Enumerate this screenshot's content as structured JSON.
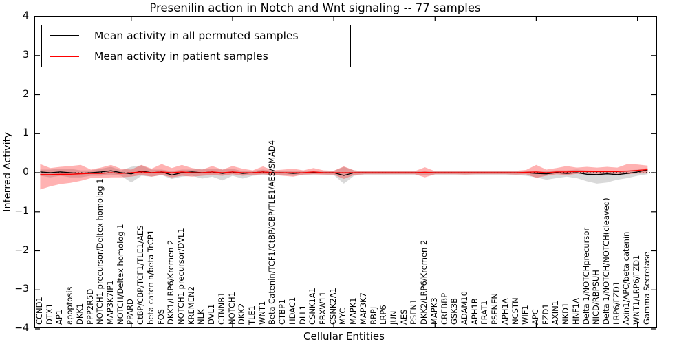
{
  "title": "Presenilin action in Notch and Wnt signaling -- 77 samples",
  "axes": {
    "ylabel": "Inferred Activity",
    "xlabel": "Cellular Entities"
  },
  "legend": {
    "items": [
      {
        "label": "Mean activity in all permuted samples",
        "color": "#000000"
      },
      {
        "label": "Mean activity in patient samples",
        "color": "#ff0000"
      }
    ]
  },
  "chart_data": {
    "type": "line",
    "title": "Presenilin action in Notch and Wnt signaling -- 77 samples",
    "xlabel": "Cellular Entities",
    "ylabel": "Inferred Activity",
    "ylim": [
      -4,
      4
    ],
    "yticks": [
      "4",
      "3",
      "2",
      "1",
      "0",
      "−1",
      "−2",
      "−3",
      "−4"
    ],
    "grid": false,
    "legend_position": "upper left",
    "zero_line": true,
    "categories": [
      "CCND1",
      "DTX1",
      "AP1",
      "apoptosis",
      "DKK1",
      "PPP2R5D",
      "NOTCH1 precursor/Deltex homolog 1",
      "MAP3K7IP1",
      "NOTCH/Deltex homolog 1",
      "PPARD",
      "CtBP/CBP/TCF1/TLE1/AES",
      "beta catenin/beta TrCP1",
      "FOS",
      "DKK1/LRP6/Kremen 2",
      "NOTCH1 precursor/DVL1",
      "KREMEN2",
      "NLK",
      "DVL1",
      "CTNNB1",
      "NOTCH1",
      "DKK2",
      "TLE1",
      "WNT1",
      "Beta Catenin/TCF1/CtBP/CBP/TLE1/AES/SMAD4",
      "CTBP1",
      "HDAC1",
      "DLL1",
      "CSNK1A1",
      "FBXW11",
      "CSNK2A1",
      "MYC",
      "MAPK1",
      "MAP3K7",
      "RBPJ",
      "LRP6",
      "JUN",
      "AES",
      "PSEN1",
      "DKK2/LRP6/Kremen 2",
      "MAPK3",
      "CREBBP",
      "GSK3B",
      "ADAM10",
      "APH1B",
      "FRAT1",
      "PSENEN",
      "APH1A",
      "NCSTN",
      "WIF1",
      "APC",
      "FZD1",
      "AXIN1",
      "NKD1",
      "HNF1A",
      "Delta 1/NOTCHprecursor",
      "NICD/RBPSUH",
      "Delta 1/NOTCH/NOTCH(cleaved)",
      "LRP6/FZD1",
      "Axin1/APC/beta catenin",
      "WNT1/LRP6/FZD1",
      "Gamma Secretase"
    ],
    "series": [
      {
        "name": "Mean activity in all permuted samples",
        "color": "#000000",
        "values": [
          0.02,
          0,
          0.02,
          0,
          -0.02,
          0,
          0.02,
          0.05,
          0,
          -0.03,
          0.04,
          0,
          0.02,
          -0.06,
          0,
          0.02,
          0,
          0.02,
          -0.02,
          0.02,
          -0.02,
          0,
          0.02,
          0,
          0,
          -0.02,
          0,
          0,
          0,
          0,
          -0.07,
          0,
          0,
          0,
          0,
          0,
          0,
          0,
          0,
          0,
          0,
          0,
          0,
          0,
          0,
          0,
          0,
          0,
          0,
          -0.02,
          -0.03,
          0,
          -0.02,
          0,
          -0.04,
          -0.05,
          -0.03,
          -0.05,
          -0.02,
          0.02,
          0.07
        ]
      },
      {
        "name": "Mean activity in patient samples",
        "color": "#ff0000",
        "values": [
          -0.05,
          -0.05,
          -0.04,
          -0.04,
          -0.03,
          -0.02,
          -0.02,
          0,
          -0.02,
          0,
          0.02,
          0,
          0.02,
          0,
          0.02,
          0,
          0,
          0.02,
          0,
          0.02,
          0,
          0,
          0.02,
          0,
          0,
          0,
          0,
          0.02,
          0,
          0,
          0,
          0,
          0,
          0,
          0,
          0,
          0,
          0,
          0.01,
          0,
          0,
          0,
          0,
          0,
          0,
          0,
          0,
          0,
          0.01,
          0.02,
          0,
          0.02,
          0.02,
          0.03,
          0.03,
          0.03,
          0.03,
          0.03,
          0.04,
          0.06,
          0.08
        ]
      }
    ],
    "bands": [
      {
        "name": "permuted-samples-range",
        "color": "#808080",
        "opacity": 0.3,
        "upper": [
          0.08,
          0.08,
          0.1,
          0.1,
          0.06,
          0.06,
          0.1,
          0.15,
          0.06,
          0.15,
          0.19,
          0.08,
          0.08,
          0.04,
          0.08,
          0.08,
          0.1,
          0.1,
          0.08,
          0.1,
          0.04,
          0.05,
          0.08,
          0.05,
          0.05,
          0.03,
          0.04,
          0.04,
          0.04,
          0.05,
          0.15,
          0.06,
          0.04,
          0.04,
          0.04,
          0.04,
          0.04,
          0.04,
          0.05,
          0.04,
          0.04,
          0.04,
          0.05,
          0.04,
          0.04,
          0.04,
          0.04,
          0.05,
          0.05,
          0.04,
          0.05,
          0.06,
          0.06,
          0.08,
          0.06,
          0.05,
          0.05,
          0.05,
          0.06,
          0.08,
          0.12
        ],
        "lower": [
          -0.08,
          -0.12,
          -0.08,
          -0.12,
          -0.12,
          -0.08,
          -0.08,
          -0.05,
          -0.08,
          -0.25,
          -0.08,
          -0.1,
          -0.06,
          -0.16,
          -0.1,
          -0.08,
          -0.15,
          -0.1,
          -0.2,
          -0.08,
          -0.15,
          -0.08,
          -0.06,
          -0.06,
          -0.06,
          -0.08,
          -0.06,
          -0.05,
          -0.05,
          -0.06,
          -0.28,
          -0.08,
          -0.05,
          -0.05,
          -0.05,
          -0.05,
          -0.05,
          -0.05,
          -0.06,
          -0.05,
          -0.05,
          -0.05,
          -0.05,
          -0.05,
          -0.05,
          -0.05,
          -0.05,
          -0.06,
          -0.08,
          -0.12,
          -0.18,
          -0.14,
          -0.1,
          -0.14,
          -0.22,
          -0.28,
          -0.25,
          -0.18,
          -0.14,
          -0.08,
          -0.04
        ]
      },
      {
        "name": "patient-samples-range",
        "color": "#ff0000",
        "opacity": 0.3,
        "upper": [
          0.22,
          0.12,
          0.15,
          0.17,
          0.2,
          0.08,
          0.13,
          0.2,
          0.1,
          0.08,
          0.2,
          0.1,
          0.22,
          0.12,
          0.2,
          0.12,
          0.08,
          0.17,
          0.08,
          0.17,
          0.1,
          0.06,
          0.16,
          0.06,
          0.08,
          0.1,
          0.06,
          0.12,
          0.06,
          0.05,
          0.16,
          0.06,
          0.04,
          0.04,
          0.05,
          0.04,
          0.04,
          0.04,
          0.14,
          0.04,
          0.04,
          0.04,
          0.05,
          0.04,
          0.04,
          0.04,
          0.04,
          0.05,
          0.07,
          0.2,
          0.08,
          0.12,
          0.17,
          0.13,
          0.15,
          0.13,
          0.15,
          0.13,
          0.22,
          0.21,
          0.18
        ],
        "lower": [
          -0.43,
          -0.35,
          -0.29,
          -0.26,
          -0.21,
          -0.14,
          -0.14,
          -0.12,
          -0.12,
          -0.1,
          -0.06,
          -0.1,
          -0.06,
          -0.12,
          -0.08,
          -0.1,
          -0.08,
          -0.06,
          -0.08,
          -0.04,
          -0.08,
          -0.06,
          -0.04,
          -0.06,
          -0.08,
          -0.1,
          -0.05,
          -0.04,
          -0.05,
          -0.05,
          -0.16,
          -0.06,
          -0.04,
          -0.04,
          -0.04,
          -0.04,
          -0.04,
          -0.04,
          -0.12,
          -0.04,
          -0.04,
          -0.04,
          -0.05,
          -0.04,
          -0.04,
          -0.04,
          -0.04,
          -0.05,
          -0.04,
          -0.13,
          -0.08,
          -0.04,
          -0.06,
          -0.03,
          -0.02,
          -0.03,
          -0.02,
          -0.03,
          -0.04,
          -0.02,
          -0.02
        ]
      }
    ]
  }
}
